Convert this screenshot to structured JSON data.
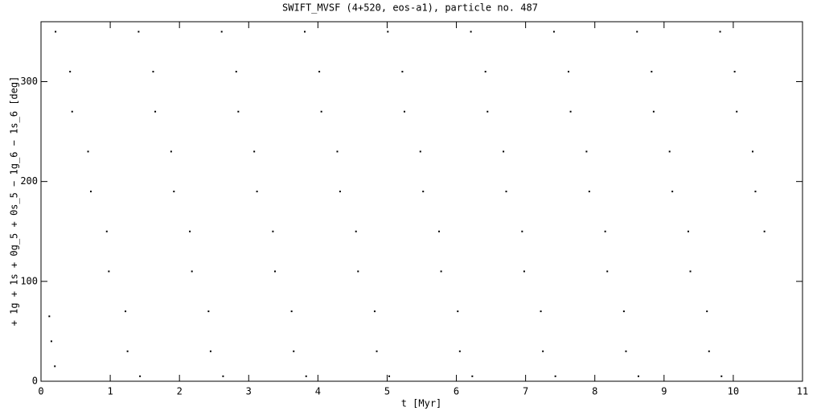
{
  "chart_data": {
    "type": "scatter",
    "title": "SWIFT_MVSF (4+520, eos-a1), particle no. 487",
    "x_label": "t [Myr]",
    "y_label": "+ 1g + 1s + 0g_5 + 0s_5 − 1g_6 − 1s_6 [deg]",
    "color": "#000000",
    "xlim": [
      0,
      11
    ],
    "xticks": [
      0,
      1,
      2,
      3,
      4,
      5,
      6,
      7,
      8,
      9,
      10,
      11
    ],
    "ylim": [
      0,
      360
    ],
    "yticks": [
      0,
      100,
      200,
      300
    ],
    "x": [
      0.12,
      0.15,
      0.2,
      0.21,
      0.42,
      0.45,
      0.68,
      0.72,
      0.95,
      0.98,
      1.22,
      1.25,
      1.43,
      1.41,
      1.62,
      1.65,
      1.88,
      1.92,
      2.15,
      2.18,
      2.42,
      2.45,
      2.63,
      2.61,
      2.82,
      2.85,
      3.08,
      3.12,
      3.35,
      3.38,
      3.62,
      3.65,
      3.83,
      3.81,
      4.02,
      4.05,
      4.28,
      4.32,
      4.55,
      4.58,
      4.82,
      4.85,
      5.03,
      5.01,
      5.22,
      5.25,
      5.48,
      5.52,
      5.75,
      5.78,
      6.02,
      6.05,
      6.23,
      6.21,
      6.42,
      6.45,
      6.68,
      6.72,
      6.95,
      6.98,
      7.22,
      7.25,
      7.43,
      7.41,
      7.62,
      7.65,
      7.88,
      7.92,
      8.15,
      8.18,
      8.42,
      8.45,
      8.63,
      8.61,
      8.82,
      8.85,
      9.08,
      9.12,
      9.35,
      9.38,
      9.62,
      9.65,
      9.83,
      9.81,
      10.02,
      10.05,
      10.28,
      10.32,
      10.45
    ],
    "values": [
      65,
      40,
      15,
      350,
      310,
      270,
      230,
      190,
      150,
      110,
      70,
      30,
      5,
      350,
      310,
      270,
      230,
      190,
      150,
      110,
      70,
      30,
      5,
      350,
      310,
      270,
      230,
      190,
      150,
      110,
      70,
      30,
      5,
      350,
      310,
      270,
      230,
      190,
      150,
      110,
      70,
      30,
      5,
      350,
      310,
      270,
      230,
      190,
      150,
      110,
      70,
      30,
      5,
      350,
      310,
      270,
      230,
      190,
      150,
      110,
      70,
      30,
      5,
      350,
      310,
      270,
      230,
      190,
      150,
      110,
      70,
      30,
      5,
      350,
      310,
      270,
      230,
      190,
      150,
      110,
      70,
      30,
      5,
      350,
      310,
      270,
      230,
      190,
      150
    ]
  }
}
